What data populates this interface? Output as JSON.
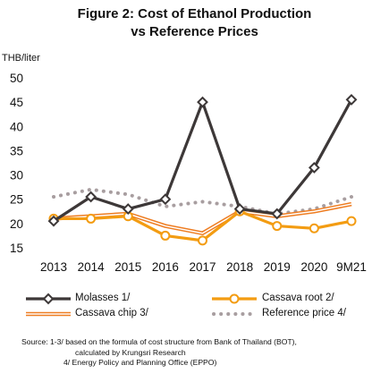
{
  "chart_data": {
    "type": "line",
    "title_line1": "Figure 2: Cost of Ethanol Production",
    "title_line2": "vs Reference Prices",
    "ylabel": "THB/liter",
    "ylim": [
      15,
      50
    ],
    "yticks": [
      15,
      20,
      25,
      30,
      35,
      40,
      45,
      50
    ],
    "categories": [
      "2013",
      "2014",
      "2015",
      "2016",
      "2017",
      "2018",
      "2019",
      "2020",
      "9M21"
    ],
    "grid": false,
    "legend_position": "bottom",
    "series": [
      {
        "name": "Molasses 1/",
        "color": "#3d3838",
        "style": "diamond-line",
        "values": [
          20.5,
          25.5,
          23.0,
          25.0,
          45.0,
          23.0,
          22.0,
          31.5,
          45.5
        ]
      },
      {
        "name": "Cassava root 2/",
        "color": "#f39c12",
        "style": "circle-line",
        "values": [
          21.0,
          21.0,
          21.5,
          17.5,
          16.5,
          22.5,
          19.5,
          19.0,
          20.5
        ]
      },
      {
        "name": "Cassava chip 3/",
        "color": "#ee7d22",
        "style": "double-line",
        "values": [
          21.0,
          21.5,
          22.0,
          19.5,
          18.0,
          22.5,
          21.5,
          22.5,
          24.0
        ]
      },
      {
        "name": "Reference price 4/",
        "color": "#a89ea0",
        "style": "dotted",
        "values": [
          25.5,
          27.0,
          26.0,
          23.5,
          24.5,
          23.5,
          22.0,
          23.0,
          25.5
        ]
      }
    ]
  },
  "source": {
    "line1": "Source: 1-3/ based on the formula of cost structure from Bank of Thailand (BOT),",
    "line2": "calculated by Krungsri Research",
    "line3": "4/ Energy Policy and Planning Office (EPPO)"
  }
}
